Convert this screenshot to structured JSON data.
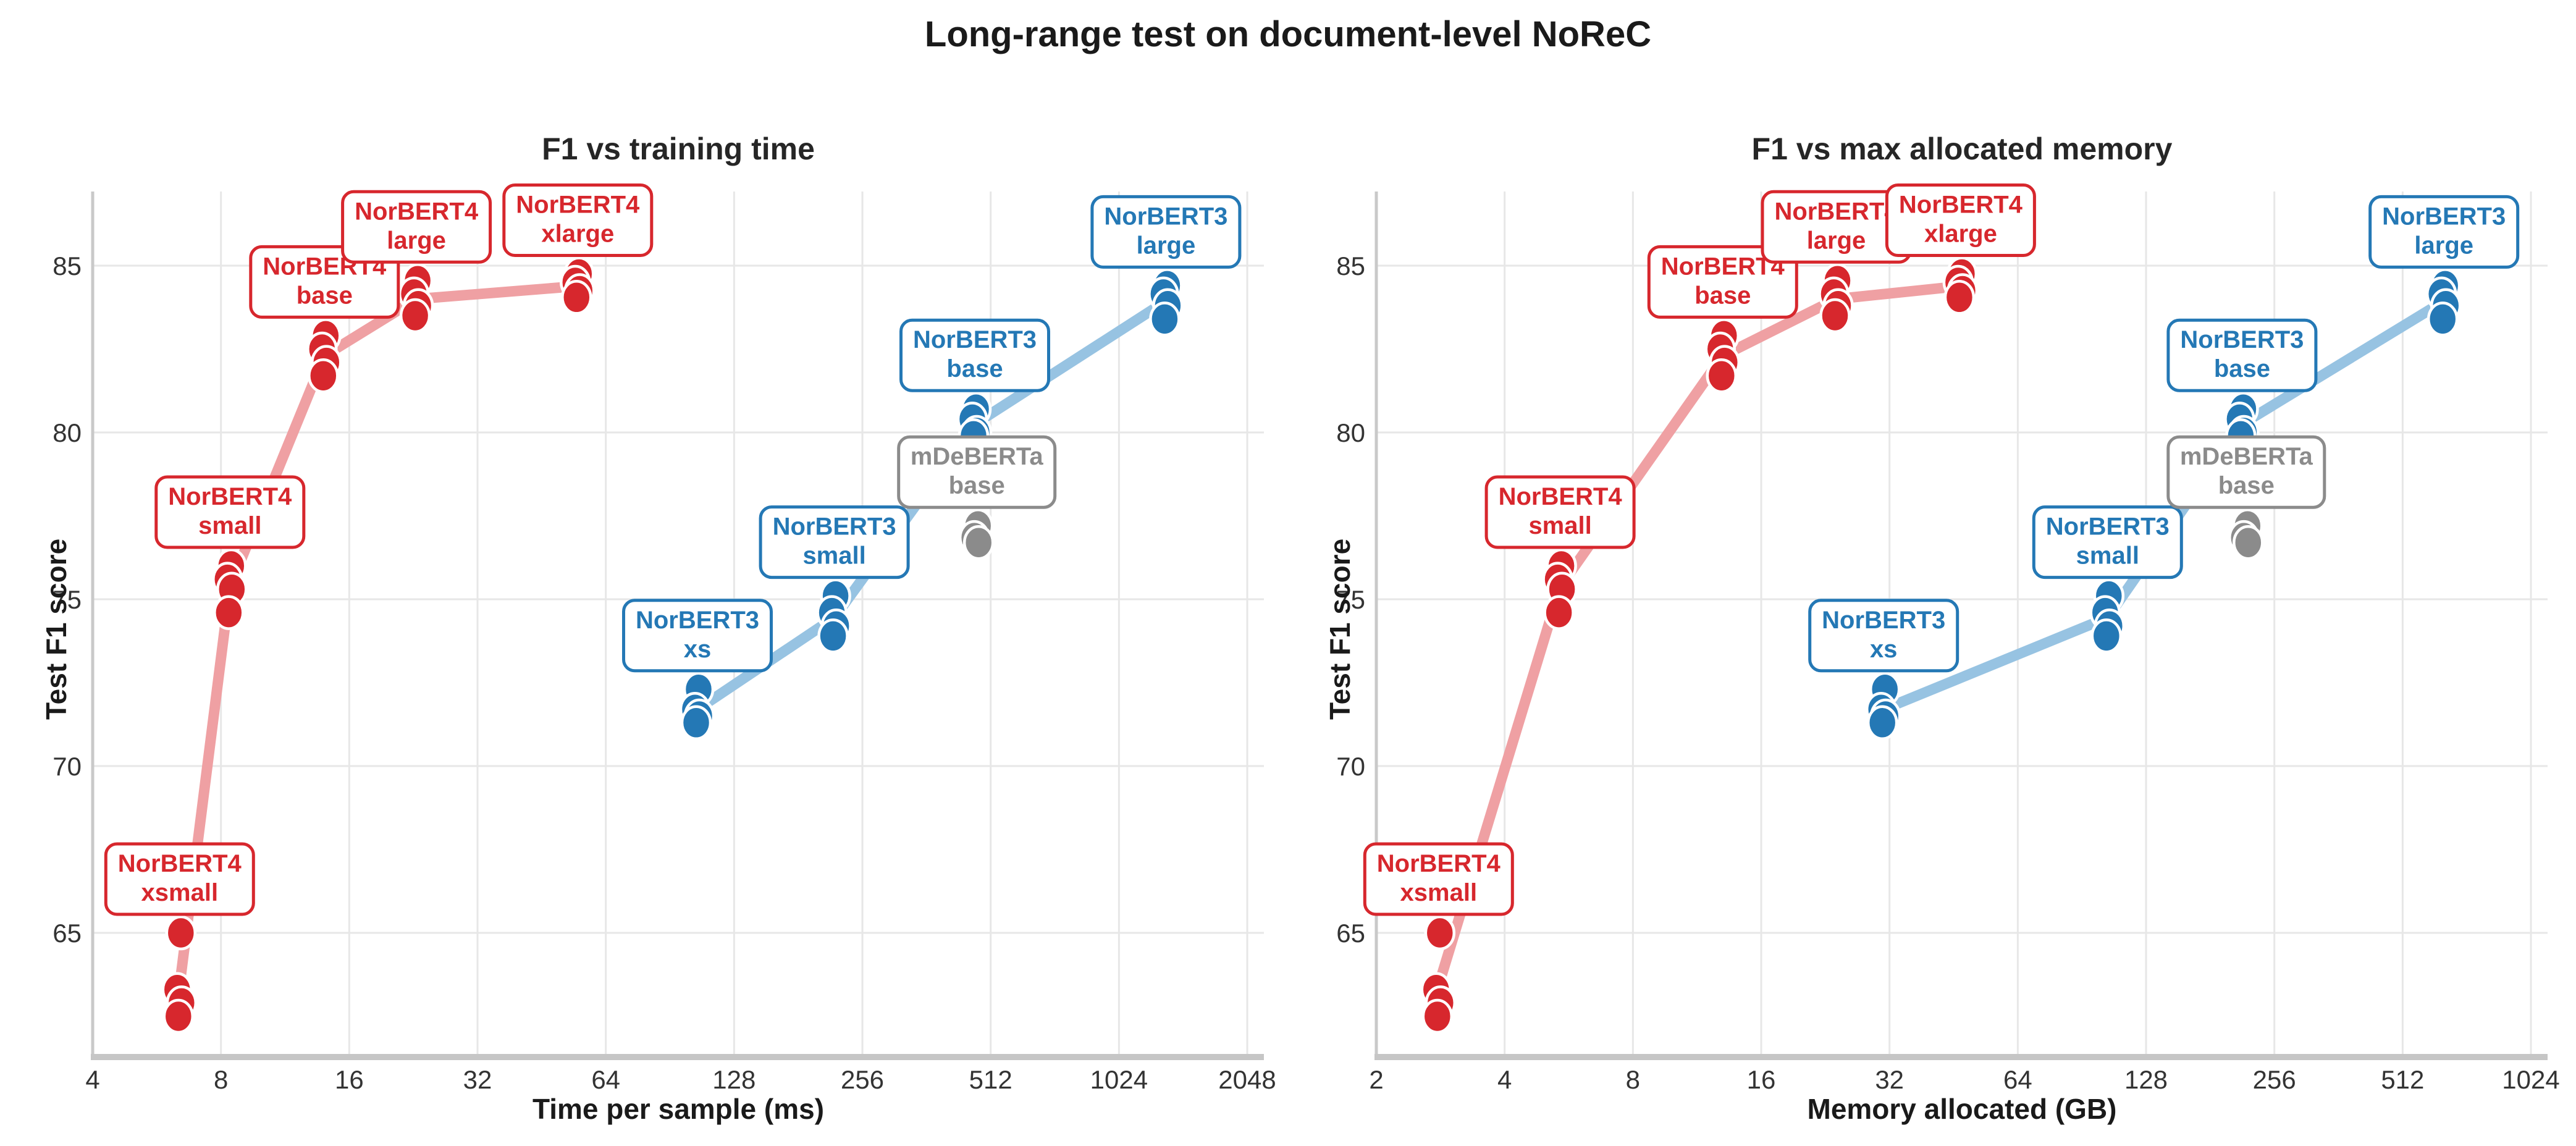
{
  "chart_data": {
    "type": "scatter",
    "suptitle": "Long-range test on document-level NoReC",
    "ylabel": "Test F1 score",
    "y_ticks": [
      65,
      70,
      75,
      80,
      85
    ],
    "ylim": [
      61.3,
      87.2
    ],
    "grid": "on",
    "legend": "none (models labeled with annotation boxes)",
    "subplots": [
      {
        "title": "F1 vs training time",
        "xlabel": "Time per sample (ms)",
        "x_field": "time_ms",
        "x_scale": "log2",
        "x_ticks": [
          4,
          8,
          16,
          32,
          64,
          128,
          256,
          512,
          1024,
          2048
        ],
        "xlim": [
          4,
          2240
        ]
      },
      {
        "title": "F1 vs max allocated memory",
        "xlabel": "Memory allocated (GB)",
        "x_field": "mem_gb",
        "x_scale": "log2",
        "x_ticks": [
          2,
          4,
          8,
          16,
          32,
          64,
          128,
          256,
          512,
          1024
        ],
        "xlim": [
          2,
          1120
        ]
      }
    ],
    "families": [
      {
        "name": "NorBERT4",
        "color": "#d7272d",
        "line_color": "#efa0a3",
        "draw_line": true
      },
      {
        "name": "NorBERT3",
        "color": "#2478b5",
        "line_color": "#97c3e2",
        "draw_line": true
      },
      {
        "name": "mDeBERTa",
        "color": "#8b8b8b",
        "line_color": null,
        "draw_line": false
      }
    ],
    "models": [
      {
        "family": "NorBERT4",
        "label_line1": "NorBERT4",
        "label_line2": "xsmall",
        "time_ms": 6.4,
        "mem_gb": 2.8,
        "f1_runs": [
          65.0,
          63.3,
          62.9,
          62.5
        ]
      },
      {
        "family": "NorBERT4",
        "label_line1": "NorBERT4",
        "label_line2": "small",
        "time_ms": 8.4,
        "mem_gb": 5.4,
        "f1_runs": [
          76.0,
          75.6,
          75.3,
          74.6
        ]
      },
      {
        "family": "NorBERT4",
        "label_line1": "NorBERT4",
        "label_line2": "base",
        "time_ms": 14,
        "mem_gb": 13,
        "f1_runs": [
          82.9,
          82.5,
          82.1,
          81.7
        ]
      },
      {
        "family": "NorBERT4",
        "label_line1": "NorBERT4",
        "label_line2": "large",
        "time_ms": 23,
        "mem_gb": 24,
        "f1_runs": [
          84.55,
          84.15,
          83.8,
          83.5
        ]
      },
      {
        "family": "NorBERT4",
        "label_line1": "NorBERT4",
        "label_line2": "xlarge",
        "time_ms": 55,
        "mem_gb": 47,
        "f1_runs": [
          84.75,
          84.5,
          84.25,
          84.05
        ]
      },
      {
        "family": "NorBERT3",
        "label_line1": "NorBERT3",
        "label_line2": "xs",
        "time_ms": 105,
        "mem_gb": 31,
        "f1_runs": [
          72.3,
          71.7,
          71.5,
          71.3
        ]
      },
      {
        "family": "NorBERT3",
        "label_line1": "NorBERT3",
        "label_line2": "small",
        "time_ms": 220,
        "mem_gb": 104,
        "f1_runs": [
          75.1,
          74.6,
          74.2,
          73.9
        ]
      },
      {
        "family": "NorBERT3",
        "label_line1": "NorBERT3",
        "label_line2": "base",
        "time_ms": 470,
        "mem_gb": 215,
        "f1_runs": [
          80.7,
          80.4,
          80.0,
          79.9
        ]
      },
      {
        "family": "NorBERT3",
        "label_line1": "NorBERT3",
        "label_line2": "large",
        "time_ms": 1320,
        "mem_gb": 640,
        "f1_runs": [
          84.4,
          84.15,
          83.8,
          83.4
        ]
      },
      {
        "family": "mDeBERTa",
        "label_line1": "mDeBERTa",
        "label_line2": "base",
        "time_ms": 475,
        "mem_gb": 220,
        "f1_runs": [
          77.2,
          76.85,
          76.7
        ]
      }
    ],
    "colors": {
      "grid": "#e7e7e7",
      "spine_left": "#c9c9c9",
      "spine_bottom": "#c6c6c6",
      "tick_text": "#333333",
      "title_text": "#1a1a1a",
      "background": "#ffffff"
    }
  }
}
